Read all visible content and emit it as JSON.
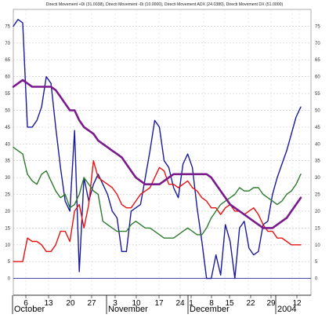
{
  "chart_data": {
    "type": "line",
    "title": "Directi Movement +Di (31.0038), Directi Movement -Di (10.0000), Directi Movement ADX (24.0380), Directi Movement DX (51.0000)",
    "xlabel": "",
    "ylabel": "",
    "ylim": [
      -5,
      80
    ],
    "yticks": [
      0,
      5,
      10,
      15,
      20,
      25,
      30,
      35,
      40,
      45,
      50,
      55,
      60,
      65,
      70,
      75
    ],
    "grid": true,
    "legend": "none",
    "x_day_labels": [
      "6",
      "13",
      "20",
      "27",
      "3",
      "10",
      "17",
      "24",
      "1",
      "8",
      "15",
      "22",
      "29",
      "12"
    ],
    "x_month_labels": [
      "October",
      "November",
      "December",
      "2004"
    ],
    "series": [
      {
        "color": "#1a1a9c",
        "values": [
          75,
          77,
          76,
          45,
          45,
          47,
          51,
          60,
          58,
          45,
          33,
          23,
          20,
          44,
          2,
          30,
          23,
          28,
          31,
          28,
          25,
          20,
          18,
          8,
          8,
          20,
          21,
          22,
          30,
          38,
          47,
          45,
          35,
          33,
          27,
          24,
          34,
          37,
          33,
          21,
          11,
          0,
          0,
          7,
          1,
          16,
          11,
          0,
          15,
          17,
          9,
          7,
          8,
          16,
          17,
          25,
          30,
          34,
          38,
          43,
          48,
          51
        ]
      },
      {
        "color": "#e81010",
        "values": [
          5,
          5,
          5,
          12,
          11,
          11,
          10,
          8,
          8,
          10,
          14,
          14,
          11,
          20,
          22,
          15,
          22,
          35,
          30,
          29,
          28,
          27,
          25,
          22,
          21,
          21,
          23,
          25,
          26,
          27,
          30,
          33,
          32,
          28,
          28,
          27,
          28,
          29,
          27,
          26,
          24,
          23,
          21,
          21,
          19,
          21,
          22,
          20,
          20,
          19,
          20,
          21,
          19,
          16,
          14,
          14,
          12,
          12,
          11,
          10,
          10,
          10
        ]
      },
      {
        "color": "#2c7a2c",
        "values": [
          39,
          38,
          37,
          31,
          29,
          28,
          31,
          32,
          29,
          26,
          24,
          25,
          21,
          22,
          25,
          30,
          28,
          26,
          25,
          17,
          16,
          15,
          14,
          14,
          14,
          16,
          17,
          16,
          15,
          15,
          14,
          13,
          12,
          12,
          12,
          13,
          14,
          15,
          14,
          13,
          13,
          15,
          18,
          20,
          22,
          23,
          24,
          25,
          27,
          26,
          26,
          27,
          27,
          25,
          24,
          23,
          22,
          23,
          25,
          26,
          28,
          31
        ]
      },
      {
        "color": "#7a1a8c",
        "values": [
          57,
          58,
          59,
          58,
          57,
          57,
          57,
          57,
          57,
          56,
          54,
          52,
          50,
          50,
          47,
          45,
          44,
          43,
          41,
          40,
          39,
          38,
          37,
          36,
          34,
          32,
          30,
          29,
          28,
          28,
          28,
          28,
          29,
          30,
          31,
          31,
          31,
          31,
          31,
          31,
          31,
          31,
          30,
          28,
          26,
          24,
          22,
          21,
          20,
          19,
          18,
          17,
          16,
          15,
          15,
          15,
          16,
          17,
          18,
          20,
          22,
          24
        ]
      }
    ]
  }
}
